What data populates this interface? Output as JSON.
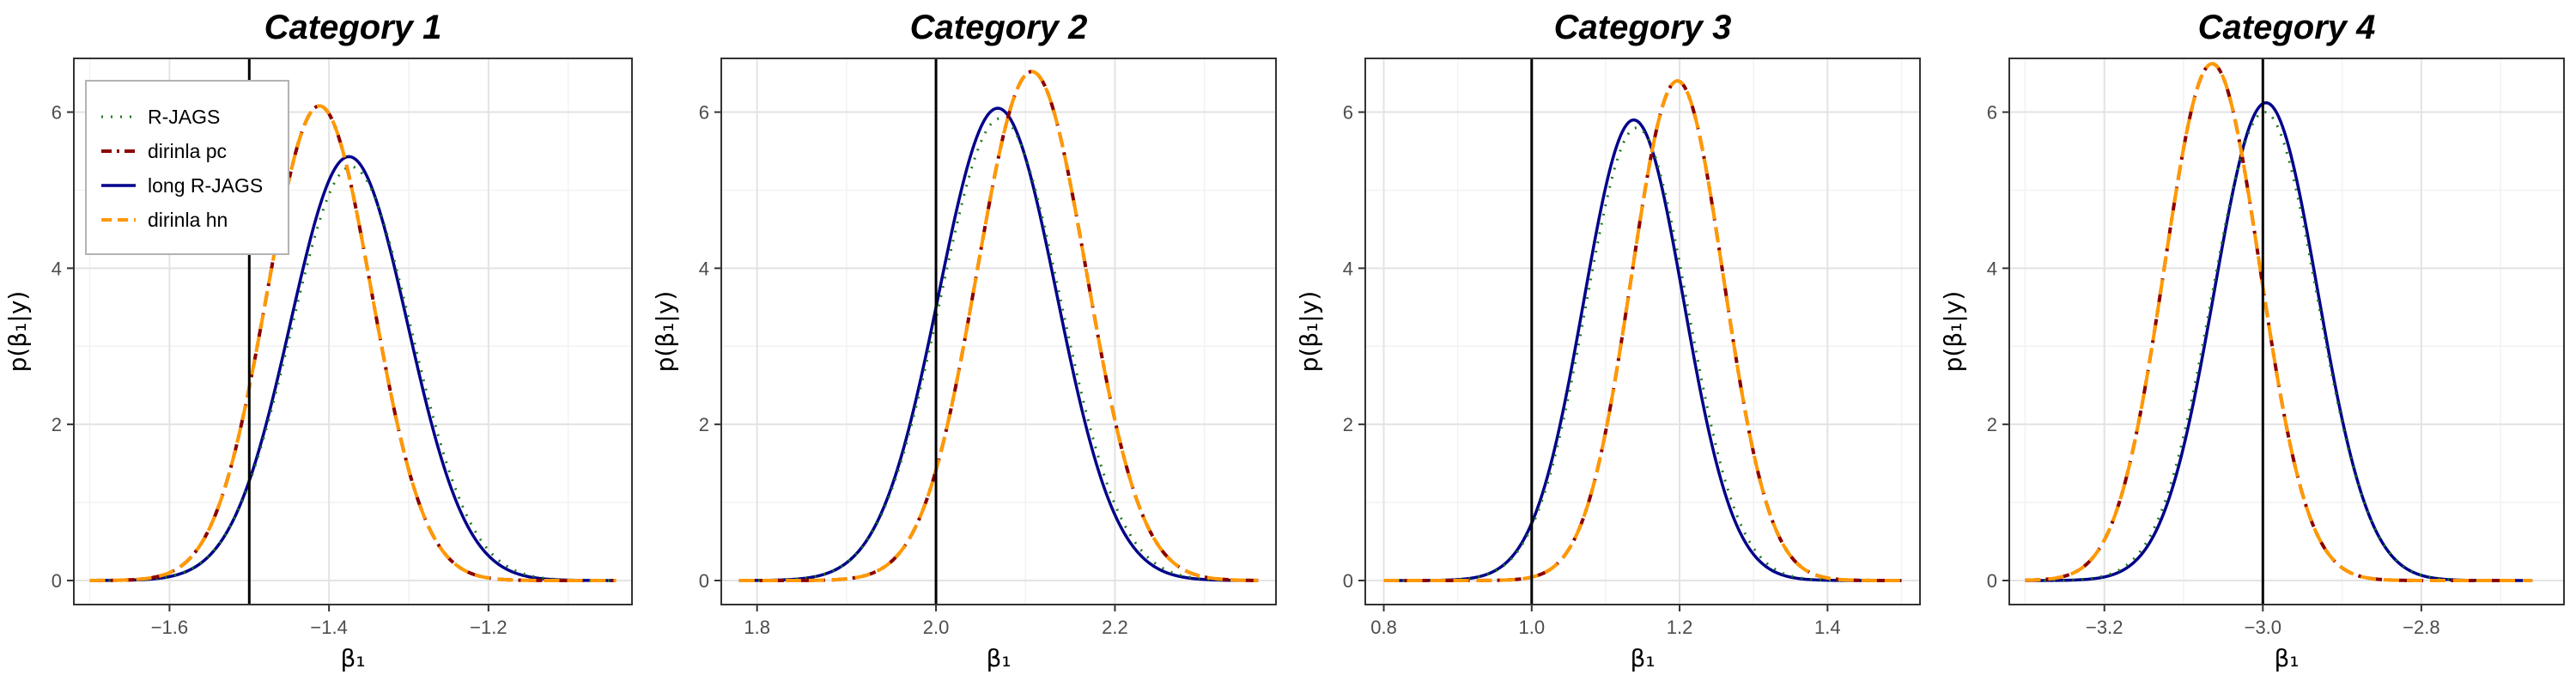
{
  "figure": {
    "ylabel": "p(β₁|y)",
    "xlabel": "β₁",
    "ylim": [
      0,
      6.6
    ],
    "yticks": [
      0,
      2,
      4,
      6
    ],
    "styles": {
      "R-JAGS": {
        "color": "#1a7a1a",
        "dash": "2,9",
        "width": 3
      },
      "dirinla pc": {
        "color": "#8b0000",
        "dash": "16,8,4,8",
        "width": 4
      },
      "long R-JAGS": {
        "color": "#00008b",
        "dash": "",
        "width": 3.5
      },
      "dirinla hn": {
        "color": "#ff9900",
        "dash": "18,9",
        "width": 4
      }
    }
  },
  "legend": {
    "panel": 0,
    "entries": [
      "R-JAGS",
      "dirinla pc",
      "long R-JAGS",
      "dirinla hn"
    ]
  },
  "chart_data": [
    {
      "type": "line",
      "title": "Category 1",
      "xlim": [
        -1.72,
        -1.02
      ],
      "xticks": [
        -1.6,
        -1.4,
        -1.2
      ],
      "xtick_labels": [
        "−1.6",
        "−1.4",
        "−1.2"
      ],
      "x_range": [
        -1.7,
        -1.04
      ],
      "vline": -1.5,
      "series": [
        {
          "name": "R-JAGS",
          "mean": -1.372,
          "peak": 5.3
        },
        {
          "name": "dirinla pc",
          "mean": -1.412,
          "peak": 6.08
        },
        {
          "name": "long R-JAGS",
          "mean": -1.375,
          "peak": 5.43
        },
        {
          "name": "dirinla hn",
          "mean": -1.412,
          "peak": 6.08
        }
      ]
    },
    {
      "type": "line",
      "title": "Category 2",
      "xlim": [
        1.76,
        2.38
      ],
      "xticks": [
        1.8,
        2.0,
        2.2
      ],
      "xtick_labels": [
        "1.8",
        "2.0",
        "2.2"
      ],
      "x_range": [
        1.78,
        2.36
      ],
      "vline": 2.0,
      "series": [
        {
          "name": "R-JAGS",
          "mean": 2.072,
          "peak": 5.92
        },
        {
          "name": "dirinla pc",
          "mean": 2.107,
          "peak": 6.52
        },
        {
          "name": "long R-JAGS",
          "mean": 2.069,
          "peak": 6.05
        },
        {
          "name": "dirinla hn",
          "mean": 2.107,
          "peak": 6.52
        }
      ]
    },
    {
      "type": "line",
      "title": "Category 3",
      "xlim": [
        0.775,
        1.525
      ],
      "xticks": [
        0.8,
        1.0,
        1.2,
        1.4
      ],
      "xtick_labels": [
        "0.8",
        "1.0",
        "1.2",
        "1.4"
      ],
      "x_range": [
        0.8,
        1.5
      ],
      "vline": 1.0,
      "series": [
        {
          "name": "R-JAGS",
          "mean": 1.142,
          "peak": 5.8
        },
        {
          "name": "dirinla pc",
          "mean": 1.197,
          "peak": 6.4
        },
        {
          "name": "long R-JAGS",
          "mean": 1.138,
          "peak": 5.9
        },
        {
          "name": "dirinla hn",
          "mean": 1.197,
          "peak": 6.4
        }
      ]
    },
    {
      "type": "line",
      "title": "Category 4",
      "xlim": [
        -3.32,
        -2.62
      ],
      "xticks": [
        -3.2,
        -3.0,
        -2.8
      ],
      "xtick_labels": [
        "−3.2",
        "−3.0",
        "−2.8"
      ],
      "x_range": [
        -3.3,
        -2.66
      ],
      "vline": -3.0,
      "series": [
        {
          "name": "R-JAGS",
          "mean": -2.998,
          "peak": 6.0
        },
        {
          "name": "dirinla pc",
          "mean": -3.064,
          "peak": 6.62
        },
        {
          "name": "long R-JAGS",
          "mean": -2.996,
          "peak": 6.12
        },
        {
          "name": "dirinla hn",
          "mean": -3.064,
          "peak": 6.62
        }
      ]
    }
  ]
}
